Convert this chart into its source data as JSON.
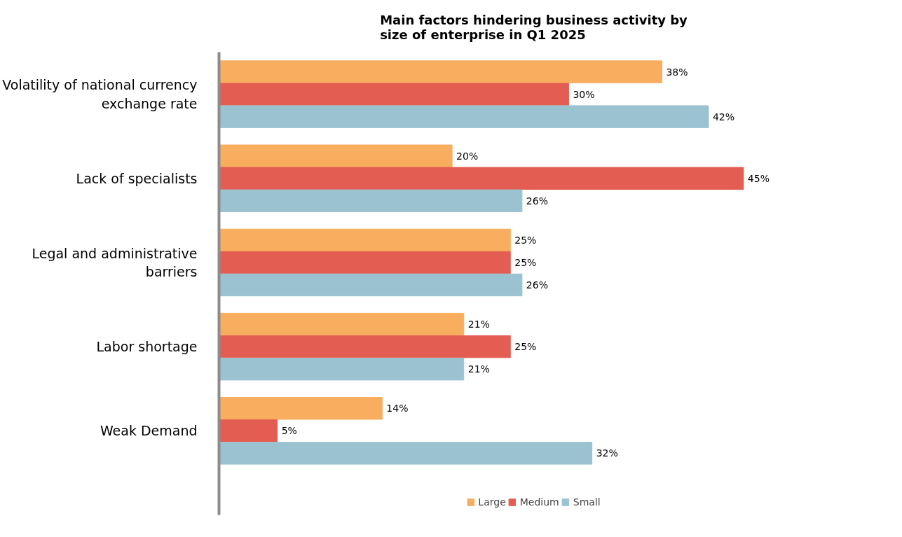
{
  "chart_data": {
    "type": "bar",
    "orientation": "horizontal",
    "title": "Main factors hindering business activity by size of enterprise in Q1 2025",
    "categories": [
      "Volatility of national currency exchange rate",
      "Lack of specialists",
      "Legal and administrative barriers",
      "Labor shortage",
      "Weak Demand"
    ],
    "series": [
      {
        "name": "Large",
        "color": "#f9ad5e",
        "values": [
          38,
          20,
          25,
          21,
          14
        ],
        "value_labels": [
          "38%",
          "20%",
          "25%",
          "21%",
          "14%"
        ]
      },
      {
        "name": "Medium",
        "color": "#e35d52",
        "values": [
          30,
          45,
          25,
          25,
          5
        ],
        "value_labels": [
          "30%",
          "45%",
          "25%",
          "25%",
          "5%"
        ]
      },
      {
        "name": "Small",
        "color": "#9bc2d0",
        "values": [
          42,
          26,
          26,
          21,
          32
        ],
        "value_labels": [
          "42%",
          "26%",
          "26%",
          "21%",
          "32%"
        ]
      }
    ],
    "legend": "bottom",
    "grid": false
  }
}
